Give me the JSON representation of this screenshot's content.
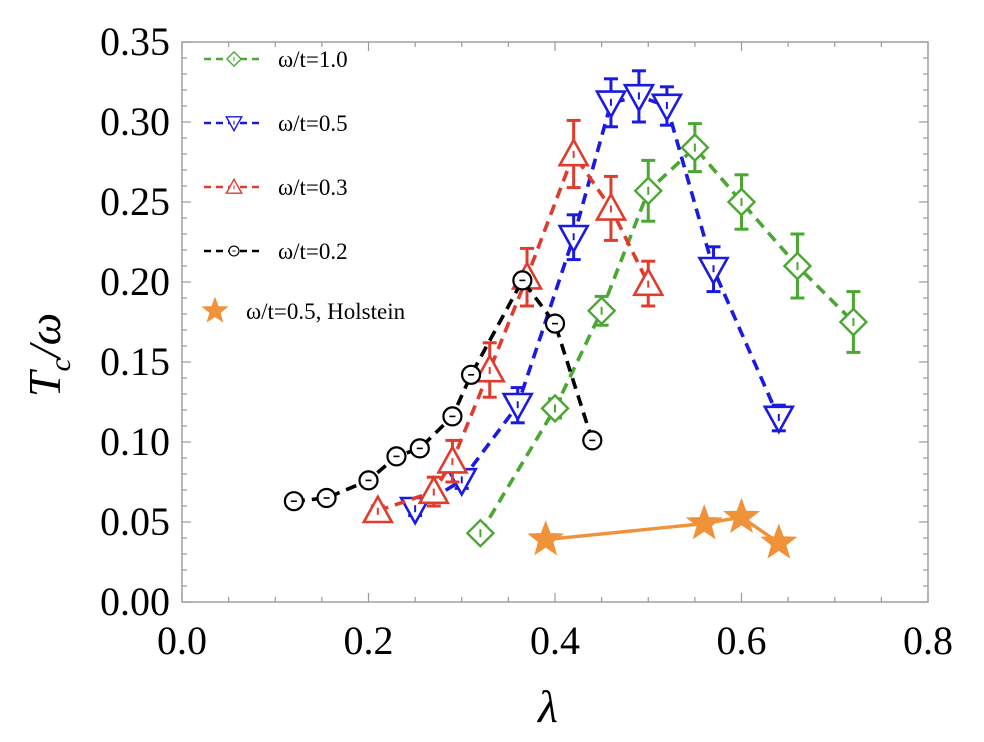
{
  "chart_data": {
    "type": "scatter",
    "title": "",
    "xlabel": "λ",
    "ylabel": "Tc/ω",
    "xlim": [
      0.0,
      0.8
    ],
    "ylim": [
      0.0,
      0.35
    ],
    "grid": false,
    "legend_position": "top-left",
    "x_ticks": [
      "0.0",
      "0.2",
      "0.4",
      "0.6",
      "0.8"
    ],
    "y_ticks": [
      "0.00",
      "0.05",
      "0.10",
      "0.15",
      "0.20",
      "0.25",
      "0.30",
      "0.35"
    ],
    "series": [
      {
        "name": "ω/t=1.0",
        "color": "#4aa832",
        "marker": "diamond",
        "line": "dashed",
        "points": [
          {
            "x": 0.32,
            "y": 0.043,
            "err": 0.002
          },
          {
            "x": 0.4,
            "y": 0.121,
            "err": 0.006
          },
          {
            "x": 0.45,
            "y": 0.182,
            "err": 0.009
          },
          {
            "x": 0.5,
            "y": 0.257,
            "err": 0.019
          },
          {
            "x": 0.55,
            "y": 0.284,
            "err": 0.015
          },
          {
            "x": 0.6,
            "y": 0.25,
            "err": 0.017
          },
          {
            "x": 0.66,
            "y": 0.21,
            "err": 0.02
          },
          {
            "x": 0.72,
            "y": 0.175,
            "err": 0.019
          }
        ]
      },
      {
        "name": "ω/t=0.5",
        "color": "#1a1ae0",
        "marker": "triangle-down",
        "line": "dashed",
        "points": [
          {
            "x": 0.25,
            "y": 0.058,
            "err": 0.004
          },
          {
            "x": 0.3,
            "y": 0.076,
            "err": 0.005
          },
          {
            "x": 0.36,
            "y": 0.123,
            "err": 0.011
          },
          {
            "x": 0.42,
            "y": 0.228,
            "err": 0.014
          },
          {
            "x": 0.46,
            "y": 0.312,
            "err": 0.015
          },
          {
            "x": 0.49,
            "y": 0.316,
            "err": 0.016
          },
          {
            "x": 0.52,
            "y": 0.31,
            "err": 0.012
          },
          {
            "x": 0.57,
            "y": 0.208,
            "err": 0.014
          },
          {
            "x": 0.64,
            "y": 0.115,
            "err": 0.008
          }
        ]
      },
      {
        "name": "ω/t=0.3",
        "color": "#e03c2e",
        "marker": "triangle-up",
        "line": "dashed",
        "points": [
          {
            "x": 0.21,
            "y": 0.057,
            "err": 0.003
          },
          {
            "x": 0.27,
            "y": 0.069,
            "err": 0.009
          },
          {
            "x": 0.29,
            "y": 0.088,
            "err": 0.013
          },
          {
            "x": 0.33,
            "y": 0.145,
            "err": 0.017
          },
          {
            "x": 0.37,
            "y": 0.203,
            "err": 0.018
          },
          {
            "x": 0.42,
            "y": 0.28,
            "err": 0.021
          },
          {
            "x": 0.46,
            "y": 0.246,
            "err": 0.02
          },
          {
            "x": 0.5,
            "y": 0.199,
            "err": 0.014
          }
        ]
      },
      {
        "name": "ω/t=0.2",
        "color": "#000000",
        "marker": "circle",
        "line": "dashed",
        "points": [
          {
            "x": 0.12,
            "y": 0.063
          },
          {
            "x": 0.155,
            "y": 0.065
          },
          {
            "x": 0.2,
            "y": 0.076
          },
          {
            "x": 0.23,
            "y": 0.091
          },
          {
            "x": 0.255,
            "y": 0.096
          },
          {
            "x": 0.29,
            "y": 0.116
          },
          {
            "x": 0.31,
            "y": 0.142
          },
          {
            "x": 0.365,
            "y": 0.201
          },
          {
            "x": 0.4,
            "y": 0.174
          },
          {
            "x": 0.44,
            "y": 0.101
          }
        ]
      },
      {
        "name": "ω/t=0.5, Holstein",
        "color": "#f0923a",
        "marker": "star",
        "line": "solid",
        "points": [
          {
            "x": 0.39,
            "y": 0.039
          },
          {
            "x": 0.56,
            "y": 0.049
          },
          {
            "x": 0.6,
            "y": 0.053
          },
          {
            "x": 0.64,
            "y": 0.037
          }
        ]
      }
    ]
  }
}
